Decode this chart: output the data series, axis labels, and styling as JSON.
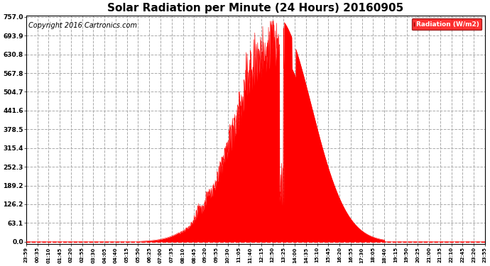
{
  "title": "Solar Radiation per Minute (24 Hours) 20160905",
  "copyright_text": "Copyright 2016 Cartronics.com",
  "legend_label": "Radiation (W/m2)",
  "y_ticks": [
    0.0,
    63.1,
    126.2,
    189.2,
    252.3,
    315.4,
    378.5,
    441.6,
    504.7,
    567.8,
    630.8,
    693.9,
    757.0
  ],
  "y_max": 757.0,
  "fill_color": "#FF0000",
  "line_color": "#FF0000",
  "background_color": "#FFFFFF",
  "grid_color": "#AAAAAA",
  "title_fontsize": 11,
  "copyright_fontsize": 7,
  "x_tick_labels": [
    "23:59",
    "00:35",
    "01:10",
    "01:45",
    "02:20",
    "02:55",
    "03:30",
    "04:05",
    "04:40",
    "05:15",
    "05:50",
    "06:25",
    "07:00",
    "07:35",
    "08:10",
    "08:45",
    "09:20",
    "09:55",
    "10:30",
    "11:05",
    "11:40",
    "12:15",
    "12:50",
    "13:25",
    "14:00",
    "14:35",
    "15:10",
    "15:45",
    "16:20",
    "16:55",
    "17:30",
    "18:05",
    "18:40",
    "19:15",
    "19:50",
    "20:25",
    "21:00",
    "21:35",
    "22:10",
    "22:45",
    "23:20",
    "23:55"
  ],
  "sunrise_hour": 5.95,
  "sunset_hour": 18.75,
  "peak_hour": 13.1,
  "peak_value": 757.0,
  "n_minutes": 1440
}
